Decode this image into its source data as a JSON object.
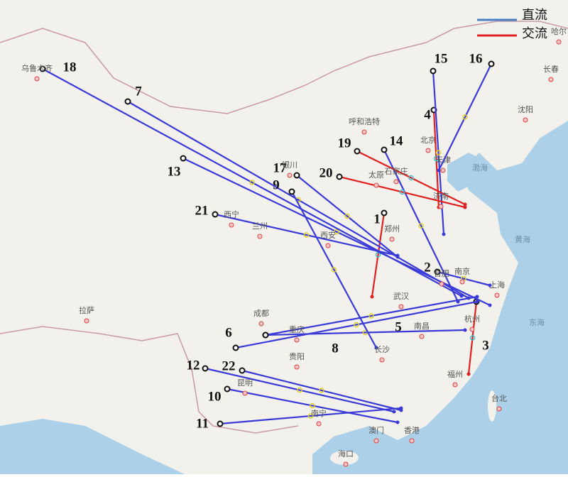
{
  "legend": [
    {
      "label": "直流"
    },
    {
      "label": "交流"
    }
  ],
  "routes": [
    {
      "label": "1"
    },
    {
      "label": "2"
    },
    {
      "label": "3"
    },
    {
      "label": "4"
    },
    {
      "label": "5"
    },
    {
      "label": "6"
    },
    {
      "label": "7"
    },
    {
      "label": "8"
    },
    {
      "label": "9"
    },
    {
      "label": "10"
    },
    {
      "label": "11"
    },
    {
      "label": "12"
    },
    {
      "label": "13"
    },
    {
      "label": "14"
    },
    {
      "label": "15"
    },
    {
      "label": "16"
    },
    {
      "label": "17"
    },
    {
      "label": "18"
    },
    {
      "label": "19"
    },
    {
      "label": "20"
    },
    {
      "label": "21"
    },
    {
      "label": "22"
    }
  ],
  "cities": [
    {
      "label": "乌鲁木齐"
    },
    {
      "label": "呼和浩特"
    },
    {
      "label": "北京"
    },
    {
      "label": "天津"
    },
    {
      "label": "石家庄"
    },
    {
      "label": "太原"
    },
    {
      "label": "济南"
    },
    {
      "label": "银川"
    },
    {
      "label": "西宁"
    },
    {
      "label": "兰州"
    },
    {
      "label": "西安"
    },
    {
      "label": "郑州"
    },
    {
      "label": "合肥"
    },
    {
      "label": "南京"
    },
    {
      "label": "上海"
    },
    {
      "label": "武汉"
    },
    {
      "label": "杭州"
    },
    {
      "label": "南昌"
    },
    {
      "label": "长沙"
    },
    {
      "label": "成都"
    },
    {
      "label": "重庆"
    },
    {
      "label": "贵阳"
    },
    {
      "label": "昆明"
    },
    {
      "label": "南宁"
    },
    {
      "label": "澳门"
    },
    {
      "label": "香港"
    },
    {
      "label": "福州"
    },
    {
      "label": "台北"
    },
    {
      "label": "拉萨"
    },
    {
      "label": "海口"
    },
    {
      "label": "长春"
    },
    {
      "label": "沈阳"
    },
    {
      "label": "哈尔"
    }
  ],
  "seas": [
    {
      "label": "渤海"
    },
    {
      "label": "黄海"
    },
    {
      "label": "东海"
    }
  ]
}
